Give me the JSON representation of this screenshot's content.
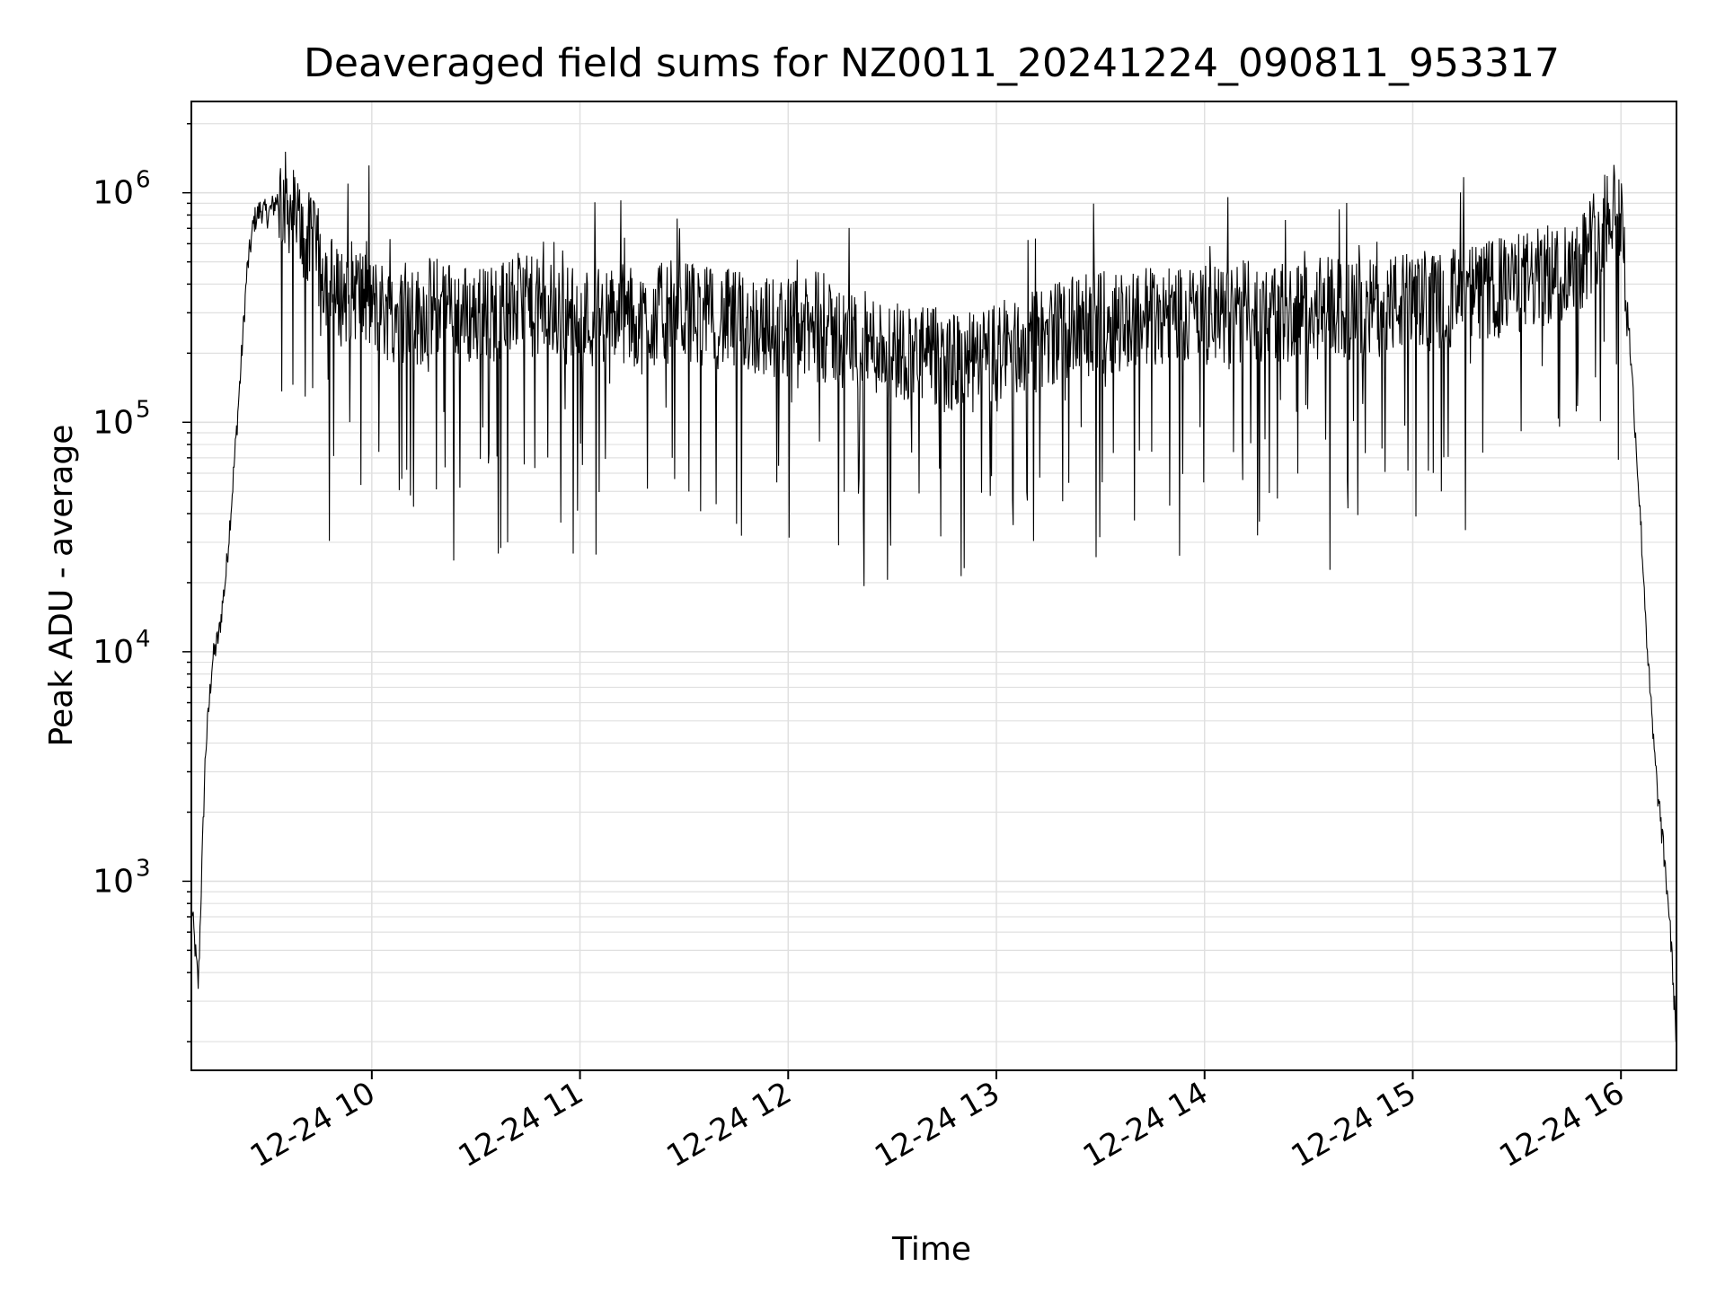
{
  "chart_data": {
    "type": "line",
    "title": "Deaveraged field sums for NZ0011_20241224_090811_953317",
    "xlabel": "Time",
    "ylabel": "Peak ADU - average",
    "yscale": "log",
    "ylim": [
      150,
      2500000
    ],
    "xlim": [
      "12-24 09:08",
      "12-24 16:16"
    ],
    "grid": true,
    "line_color": "#000000",
    "grid_color": "#e0e0e0",
    "x_ticks": [
      {
        "value": "12-24 10:00",
        "label": "12-24 10"
      },
      {
        "value": "12-24 11:00",
        "label": "12-24 11"
      },
      {
        "value": "12-24 12:00",
        "label": "12-24 12"
      },
      {
        "value": "12-24 13:00",
        "label": "12-24 13"
      },
      {
        "value": "12-24 14:00",
        "label": "12-24 14"
      },
      {
        "value": "12-24 15:00",
        "label": "12-24 15"
      },
      {
        "value": "12-24 16:00",
        "label": "12-24 16"
      }
    ],
    "y_ticks": [
      {
        "value": 1000,
        "base": "10",
        "exp": "3"
      },
      {
        "value": 10000,
        "base": "10",
        "exp": "4"
      },
      {
        "value": 100000,
        "base": "10",
        "exp": "5"
      },
      {
        "value": 1000000,
        "base": "10",
        "exp": "6"
      }
    ],
    "series": [
      {
        "x": [
          "12-24 09:08",
          "12-24 09:10",
          "12-24 09:12",
          "12-24 09:14",
          "12-24 09:16",
          "12-24 09:18",
          "12-24 09:20",
          "12-24 09:22",
          "12-24 09:24",
          "12-24 09:26",
          "12-24 09:28",
          "12-24 09:30",
          "12-24 09:33",
          "12-24 09:36",
          "12-24 09:39",
          "12-24 09:42",
          "12-24 09:45",
          "12-24 09:50",
          "12-24 09:55",
          "12-24 10:00",
          "12-24 10:06",
          "12-24 10:12",
          "12-24 10:18",
          "12-24 10:24",
          "12-24 10:30",
          "12-24 10:36",
          "12-24 10:42",
          "12-24 10:48",
          "12-24 10:54",
          "12-24 11:00",
          "12-24 11:06",
          "12-24 11:12",
          "12-24 11:18",
          "12-24 11:24",
          "12-24 11:30",
          "12-24 11:36",
          "12-24 11:42",
          "12-24 11:48",
          "12-24 11:54",
          "12-24 12:00",
          "12-24 12:06",
          "12-24 12:12",
          "12-24 12:18",
          "12-24 12:24",
          "12-24 12:30",
          "12-24 12:36",
          "12-24 12:42",
          "12-24 12:48",
          "12-24 12:54",
          "12-24 13:00",
          "12-24 13:06",
          "12-24 13:12",
          "12-24 13:18",
          "12-24 13:24",
          "12-24 13:30",
          "12-24 13:36",
          "12-24 13:42",
          "12-24 13:48",
          "12-24 13:54",
          "12-24 14:00",
          "12-24 14:06",
          "12-24 14:12",
          "12-24 14:18",
          "12-24 14:24",
          "12-24 14:30",
          "12-24 14:36",
          "12-24 14:42",
          "12-24 14:48",
          "12-24 14:54",
          "12-24 15:00",
          "12-24 15:06",
          "12-24 15:12",
          "12-24 15:18",
          "12-24 15:24",
          "12-24 15:30",
          "12-24 15:36",
          "12-24 15:42",
          "12-24 15:48",
          "12-24 15:54",
          "12-24 15:58",
          "12-24 16:00",
          "12-24 16:02",
          "12-24 16:04",
          "12-24 16:06",
          "12-24 16:08",
          "12-24 16:10",
          "12-24 16:12",
          "12-24 16:14",
          "12-24 16:16"
        ],
        "y": [
          800,
          350,
          3500,
          9000,
          12000,
          22000,
          55000,
          150000,
          450000,
          750000,
          850000,
          800000,
          950000,
          900000,
          700000,
          600000,
          500000,
          350000,
          380000,
          320000,
          300000,
          280000,
          320000,
          300000,
          290000,
          300000,
          330000,
          310000,
          300000,
          290000,
          280000,
          300000,
          270000,
          300000,
          310000,
          290000,
          280000,
          270000,
          260000,
          260000,
          250000,
          240000,
          230000,
          220000,
          210000,
          200000,
          190000,
          180000,
          180000,
          200000,
          210000,
          230000,
          250000,
          260000,
          270000,
          280000,
          290000,
          300000,
          300000,
          290000,
          290000,
          300000,
          310000,
          300000,
          310000,
          320000,
          300000,
          310000,
          330000,
          330000,
          340000,
          350000,
          360000,
          380000,
          400000,
          420000,
          450000,
          500000,
          700000,
          950000,
          800000,
          300000,
          100000,
          30000,
          8000,
          3000,
          1500,
          700,
          200
        ],
        "noise_amplitude_decades": 0.45
      }
    ]
  }
}
